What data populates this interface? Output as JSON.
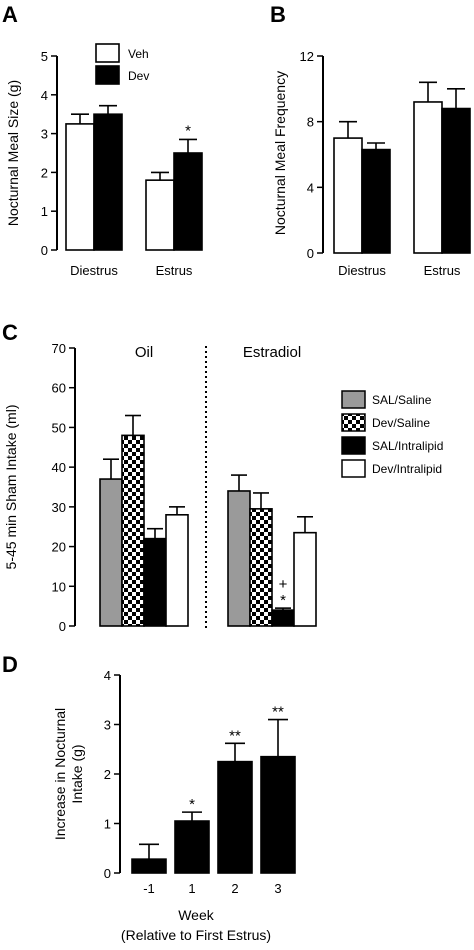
{
  "chart_data": [
    {
      "panel": "A",
      "type": "bar",
      "ylabel": "Nocturnal Meal Size (g)",
      "ylim": [
        0,
        5
      ],
      "yticks": [
        0,
        1,
        2,
        3,
        4,
        5
      ],
      "categories": [
        "Diestrus",
        "Estrus"
      ],
      "series": [
        {
          "name": "Veh",
          "values": [
            3.25,
            1.8
          ],
          "errors": [
            0.25,
            0.2
          ],
          "fill": "white"
        },
        {
          "name": "Dev",
          "values": [
            3.5,
            2.5
          ],
          "errors": [
            0.22,
            0.35
          ],
          "fill": "black"
        }
      ],
      "annotations": [
        {
          "category": "Estrus",
          "series": "Dev",
          "text": "*"
        }
      ],
      "legend": "top-left"
    },
    {
      "panel": "B",
      "type": "bar",
      "ylabel": "Nocturnal Meal Frequency",
      "ylim": [
        0,
        12
      ],
      "yticks": [
        0,
        4,
        8,
        12
      ],
      "categories": [
        "Diestrus",
        "Estrus"
      ],
      "series": [
        {
          "name": "Veh",
          "values": [
            7.0,
            9.2
          ],
          "errors": [
            1.0,
            1.2
          ],
          "fill": "white"
        },
        {
          "name": "Dev",
          "values": [
            6.3,
            8.8
          ],
          "errors": [
            0.4,
            1.2
          ],
          "fill": "black"
        }
      ]
    },
    {
      "panel": "C",
      "type": "bar",
      "ylabel": "5-45 min Sham Intake (ml)",
      "ylim": [
        0,
        70
      ],
      "yticks": [
        0,
        10,
        20,
        30,
        40,
        50,
        60,
        70
      ],
      "categories": [
        "Oil",
        "Estradiol"
      ],
      "series": [
        {
          "name": "SAL/Saline",
          "values": [
            37,
            34
          ],
          "errors": [
            5,
            4
          ],
          "fill": "gray"
        },
        {
          "name": "Dev/Saline",
          "values": [
            48,
            29.5
          ],
          "errors": [
            5,
            4
          ],
          "fill": "checker"
        },
        {
          "name": "SAL/Intralipid",
          "values": [
            22,
            4
          ],
          "errors": [
            2.5,
            0.5
          ],
          "fill": "black"
        },
        {
          "name": "Dev/Intralipid",
          "values": [
            28,
            23.5
          ],
          "errors": [
            2,
            4
          ],
          "fill": "white"
        }
      ],
      "annotations": [
        {
          "category": "Estradiol",
          "series": "SAL/Intralipid",
          "text": [
            "+",
            "*"
          ]
        }
      ],
      "legend": "right"
    },
    {
      "panel": "D",
      "type": "bar",
      "ylabel": [
        "Increase in Nocturnal",
        "Intake (g)"
      ],
      "ylim": [
        0,
        4
      ],
      "yticks": [
        0,
        1,
        2,
        3,
        4
      ],
      "categories": [
        "-1",
        "1",
        "2",
        "3"
      ],
      "values": [
        0.28,
        1.05,
        2.25,
        2.35
      ],
      "errors": [
        0.3,
        0.18,
        0.37,
        0.75
      ],
      "significance": [
        "",
        "*",
        "**",
        "**"
      ],
      "xlabel": [
        "Week",
        "(Relative to First Estrus)"
      ]
    }
  ]
}
